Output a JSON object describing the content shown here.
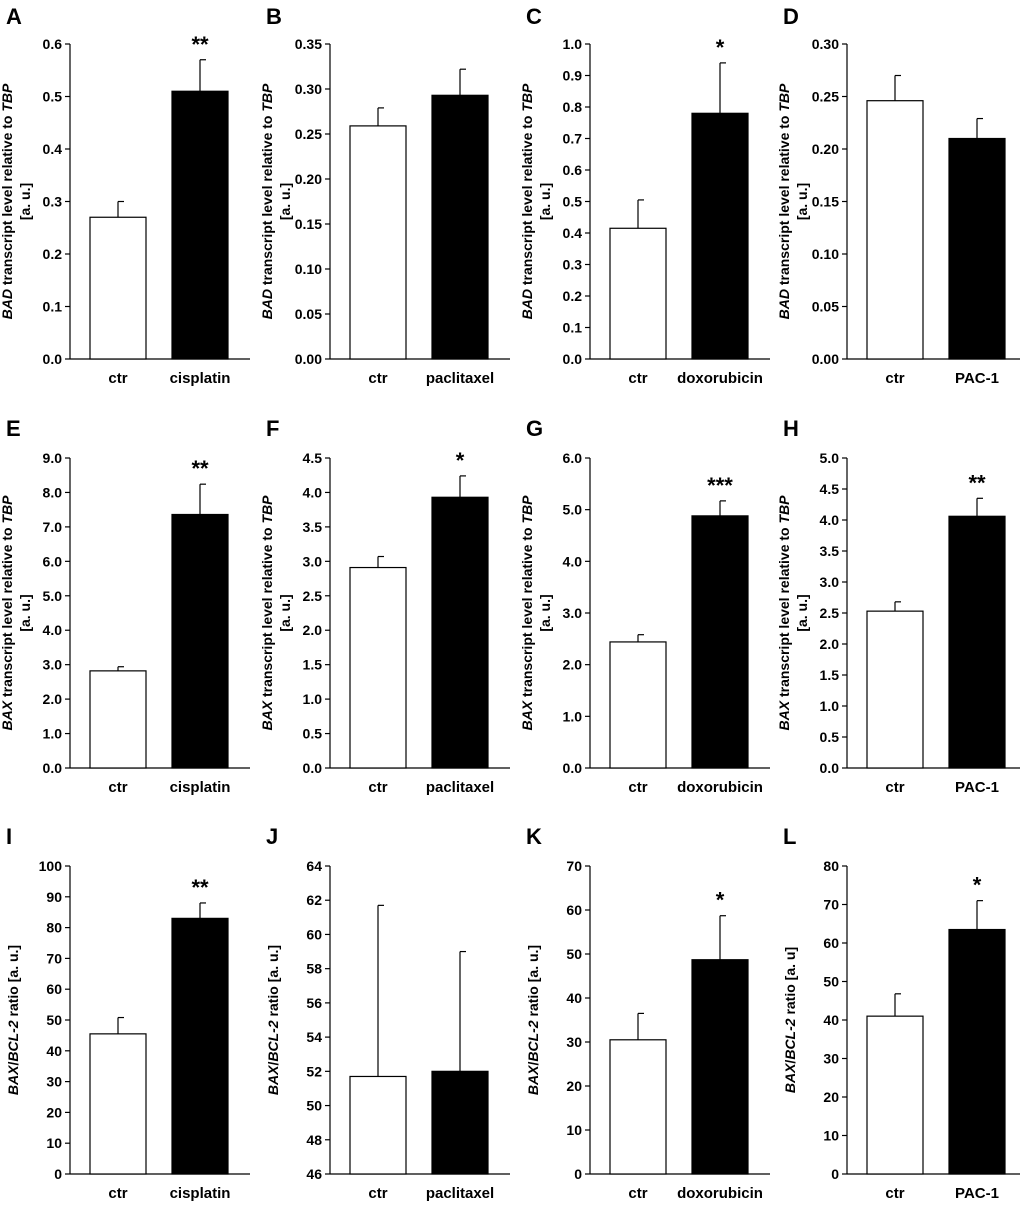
{
  "chart_data": [
    {
      "letter": "A",
      "type": "bar",
      "categories": [
        "ctr",
        "cisplatin"
      ],
      "values": [
        0.27,
        0.51
      ],
      "errors": [
        0.03,
        0.06
      ],
      "significance": [
        "",
        "**"
      ],
      "ylim": [
        0,
        0.6
      ],
      "yticks": [
        "0.0",
        "0.1",
        "0.2",
        "0.3",
        "0.4",
        "0.5",
        "0.6"
      ],
      "ylabel_gene": "BAD",
      "ylabel_text": " transcript level relative to ",
      "ylabel_ref": "TBP",
      "ylabel_line2": "[a. u.]"
    },
    {
      "letter": "B",
      "type": "bar",
      "categories": [
        "ctr",
        "paclitaxel"
      ],
      "values": [
        0.259,
        0.293
      ],
      "errors": [
        0.02,
        0.029
      ],
      "significance": [
        "",
        ""
      ],
      "ylim": [
        0,
        0.35
      ],
      "yticks": [
        "0.00",
        "0.05",
        "0.10",
        "0.15",
        "0.20",
        "0.25",
        "0.30",
        "0.35"
      ],
      "ylabel_gene": "BAD",
      "ylabel_text": " transcript level relative to ",
      "ylabel_ref": "TBP",
      "ylabel_line2": "[a. u.]"
    },
    {
      "letter": "C",
      "type": "bar",
      "categories": [
        "ctr",
        "doxorubicin"
      ],
      "values": [
        0.415,
        0.78
      ],
      "errors": [
        0.09,
        0.16
      ],
      "significance": [
        "",
        "*"
      ],
      "ylim": [
        0,
        1.0
      ],
      "yticks": [
        "0.0",
        "0.1",
        "0.2",
        "0.3",
        "0.4",
        "0.5",
        "0.6",
        "0.7",
        "0.8",
        "0.9",
        "1.0"
      ],
      "ylabel_gene": "BAD",
      "ylabel_text": " transcript level relative to ",
      "ylabel_ref": "TBP",
      "ylabel_line2": "[a. u.]"
    },
    {
      "letter": "D",
      "type": "bar",
      "categories": [
        "ctr",
        "PAC-1"
      ],
      "values": [
        0.246,
        0.21
      ],
      "errors": [
        0.024,
        0.019
      ],
      "significance": [
        "",
        ""
      ],
      "ylim": [
        0,
        0.3
      ],
      "yticks": [
        "0.00",
        "0.05",
        "0.10",
        "0.15",
        "0.20",
        "0.25",
        "0.30"
      ],
      "ylabel_gene": "BAD",
      "ylabel_text": " transcript level relative to ",
      "ylabel_ref": "TBP",
      "ylabel_line2": "[a. u.]"
    },
    {
      "letter": "E",
      "type": "bar",
      "categories": [
        "ctr",
        "cisplatin"
      ],
      "values": [
        2.82,
        7.36
      ],
      "errors": [
        0.12,
        0.88
      ],
      "significance": [
        "",
        "**"
      ],
      "ylim": [
        0,
        9.0
      ],
      "yticks": [
        "0.0",
        "1.0",
        "2.0",
        "3.0",
        "4.0",
        "5.0",
        "6.0",
        "7.0",
        "8.0",
        "9.0"
      ],
      "ylabel_gene": "BAX",
      "ylabel_text": " transcript level relative to ",
      "ylabel_ref": "TBP",
      "ylabel_line2": "[a. u.]"
    },
    {
      "letter": "F",
      "type": "bar",
      "categories": [
        "ctr",
        "paclitaxel"
      ],
      "values": [
        2.91,
        3.93
      ],
      "errors": [
        0.16,
        0.31
      ],
      "significance": [
        "",
        "*"
      ],
      "ylim": [
        0,
        4.5
      ],
      "yticks": [
        "0.0",
        "0.5",
        "1.0",
        "1.5",
        "2.0",
        "2.5",
        "3.0",
        "3.5",
        "4.0",
        "4.5"
      ],
      "ylabel_gene": "BAX",
      "ylabel_text": " transcript level relative to ",
      "ylabel_ref": "TBP",
      "ylabel_line2": "[a. u.]"
    },
    {
      "letter": "G",
      "type": "bar",
      "categories": [
        "ctr",
        "doxorubicin"
      ],
      "values": [
        2.44,
        4.88
      ],
      "errors": [
        0.14,
        0.29
      ],
      "significance": [
        "",
        "***"
      ],
      "ylim": [
        0,
        6.0
      ],
      "yticks": [
        "0.0",
        "1.0",
        "2.0",
        "3.0",
        "4.0",
        "5.0",
        "6.0"
      ],
      "ylabel_gene": "BAX",
      "ylabel_text": " transcript level relative to ",
      "ylabel_ref": "TBP",
      "ylabel_line2": "[a. u.]"
    },
    {
      "letter": "H",
      "type": "bar",
      "categories": [
        "ctr",
        "PAC-1"
      ],
      "values": [
        2.53,
        4.06
      ],
      "errors": [
        0.15,
        0.29
      ],
      "significance": [
        "",
        "**"
      ],
      "ylim": [
        0,
        5.0
      ],
      "yticks": [
        "0.0",
        "0.5",
        "1.0",
        "1.5",
        "2.0",
        "2.5",
        "3.0",
        "3.5",
        "4.0",
        "4.5",
        "5.0"
      ],
      "ylabel_gene": "BAX",
      "ylabel_text": " transcript level relative to ",
      "ylabel_ref": "TBP",
      "ylabel_line2": "[a. u.]"
    },
    {
      "letter": "I",
      "type": "bar",
      "categories": [
        "ctr",
        "cisplatin"
      ],
      "values": [
        45.5,
        83
      ],
      "errors": [
        5.3,
        5
      ],
      "significance": [
        "",
        "**"
      ],
      "ylim": [
        0,
        100
      ],
      "yticks": [
        "0",
        "10",
        "20",
        "30",
        "40",
        "50",
        "60",
        "70",
        "80",
        "90",
        "100"
      ],
      "ylabel_gene": "BAX",
      "ylabel_text": "/",
      "ylabel_ref": "BCL-2",
      "ylabel_tail": " ratio [a. u.]"
    },
    {
      "letter": "J",
      "type": "bar",
      "categories": [
        "ctr",
        "paclitaxel"
      ],
      "values": [
        51.7,
        52.0
      ],
      "errors": [
        10.0,
        7.0
      ],
      "significance": [
        "",
        ""
      ],
      "ylim": [
        46,
        64
      ],
      "yticks": [
        "46",
        "48",
        "50",
        "52",
        "54",
        "56",
        "58",
        "60",
        "62",
        "64"
      ],
      "ylabel_gene": "BAX",
      "ylabel_text": "/",
      "ylabel_ref": "BCL-2",
      "ylabel_tail": " ratio [a. u.]"
    },
    {
      "letter": "K",
      "type": "bar",
      "categories": [
        "ctr",
        "doxorubicin"
      ],
      "values": [
        30.5,
        48.7
      ],
      "errors": [
        6,
        10
      ],
      "significance": [
        "",
        "*"
      ],
      "ylim": [
        0,
        70
      ],
      "yticks": [
        "0",
        "10",
        "20",
        "30",
        "40",
        "50",
        "60",
        "70"
      ],
      "ylabel_gene": "BAX",
      "ylabel_text": "/",
      "ylabel_ref": "BCL-2",
      "ylabel_tail": " ratio [a. u.]"
    },
    {
      "letter": "L",
      "type": "bar",
      "categories": [
        "ctr",
        "PAC-1"
      ],
      "values": [
        41,
        63.5
      ],
      "errors": [
        5.8,
        7.5
      ],
      "significance": [
        "",
        "*"
      ],
      "ylim": [
        0,
        80
      ],
      "yticks": [
        "0",
        "10",
        "20",
        "30",
        "40",
        "50",
        "60",
        "70",
        "80"
      ],
      "ylabel_gene": "BAX",
      "ylabel_text": "/",
      "ylabel_ref": "BCL-2",
      "ylabel_tail": " ratio [a. u]"
    }
  ]
}
